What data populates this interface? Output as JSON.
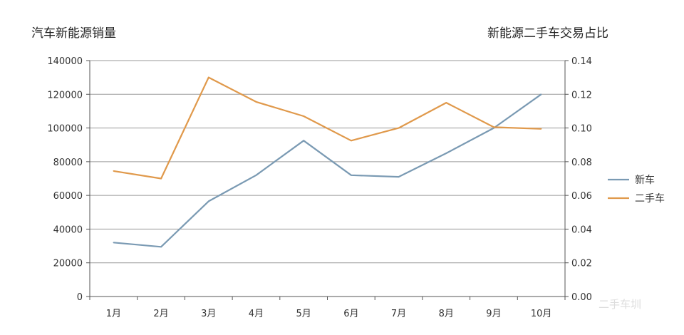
{
  "chart_data": {
    "type": "line",
    "left_title": "汽车新能源销量",
    "right_title": "新能源二手车交易占比",
    "categories": [
      "1月",
      "2月",
      "3月",
      "4月",
      "5月",
      "6月",
      "7月",
      "8月",
      "9月",
      "10月"
    ],
    "left_axis": {
      "min": 0,
      "max": 140000,
      "ticks": [
        0,
        20000,
        40000,
        60000,
        80000,
        100000,
        120000,
        140000
      ]
    },
    "right_axis": {
      "min": 0,
      "max": 0.14,
      "ticks": [
        "0.00",
        "0.02",
        "0.04",
        "0.06",
        "0.08",
        "0.10",
        "0.12",
        "0.14"
      ]
    },
    "series": [
      {
        "name": "新车",
        "axis": "left",
        "color": "#7a9ab3",
        "values": [
          32000,
          29500,
          56500,
          72000,
          92500,
          72000,
          71000,
          85000,
          100000,
          120000
        ]
      },
      {
        "name": "二手车",
        "axis": "right",
        "color": "#e0994b",
        "values": [
          0.0745,
          0.07,
          0.13,
          0.1155,
          0.107,
          0.0925,
          0.1,
          0.115,
          0.1005,
          0.0995
        ]
      }
    ],
    "grid": true,
    "legend_position": "right"
  },
  "watermark": "二手车圳"
}
